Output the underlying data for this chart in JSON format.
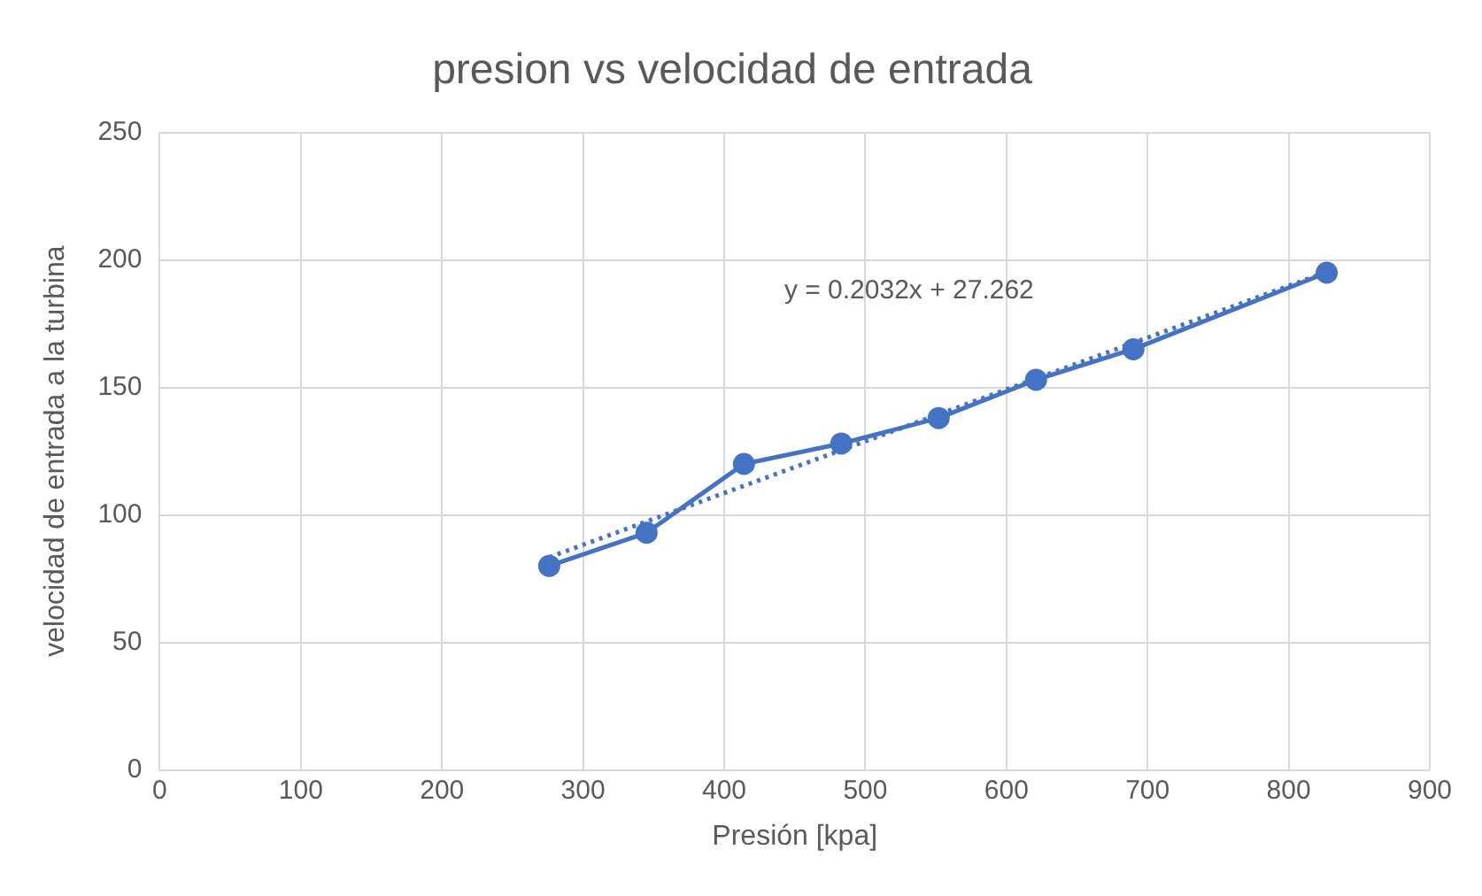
{
  "chart_data": {
    "type": "line",
    "title": "presion vs velocidad de entrada",
    "xlabel": "Presión [kpa]",
    "ylabel": "velocidad de entrada a la turbina",
    "x": [
      276,
      345,
      414,
      483,
      552,
      621,
      690,
      827
    ],
    "series": [
      {
        "color": "#4472c4",
        "values": [
          80,
          93,
          120,
          128,
          138,
          153,
          165,
          195
        ],
        "marker": "circle",
        "line_style": "solid"
      },
      {
        "type": "line",
        "color": "#4472c4",
        "x": [
          276,
          827
        ],
        "values": [
          83.4,
          195.3
        ],
        "marker": "none",
        "line_style": "dotted"
      }
    ],
    "xlim": [
      0,
      900
    ],
    "xticks": [
      0,
      100,
      200,
      300,
      400,
      500,
      600,
      700,
      800,
      900
    ],
    "ylim": [
      0,
      250
    ],
    "yticks": [
      0,
      50,
      100,
      150,
      200,
      250
    ],
    "grid": true,
    "legend": false,
    "annotations": [
      "y = 0.2032x + 27.262"
    ]
  }
}
